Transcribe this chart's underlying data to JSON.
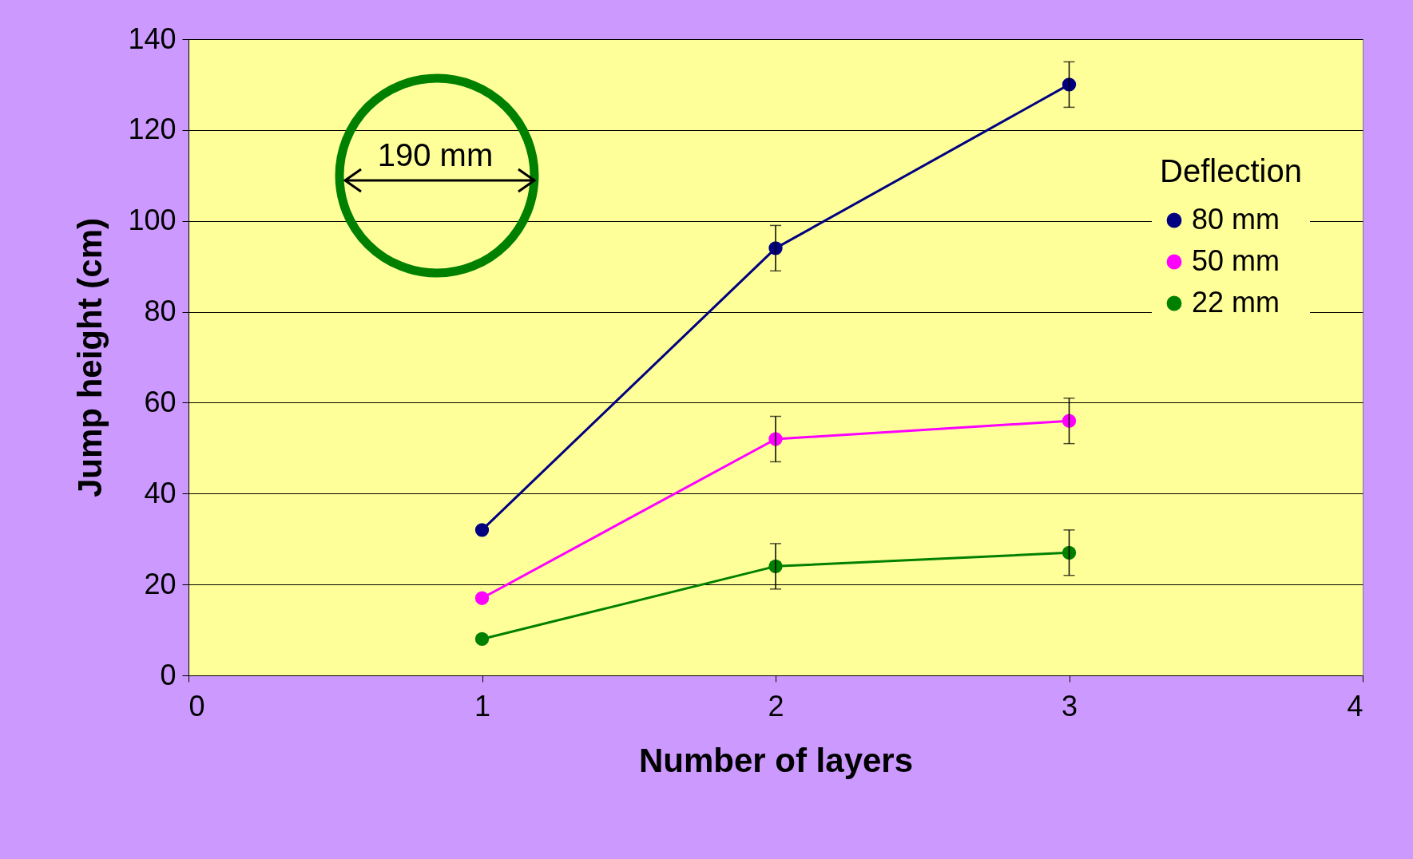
{
  "chart_data": {
    "type": "line",
    "xlabel": "Number of layers",
    "ylabel": "Jump height (cm)",
    "legend_title": "Deflection",
    "x": [
      1,
      2,
      3
    ],
    "series": [
      {
        "name": "80 mm",
        "color": "#000080",
        "values": [
          32,
          94,
          130
        ],
        "errors": [
          null,
          5,
          5
        ]
      },
      {
        "name": "50 mm",
        "color": "#ff00ff",
        "values": [
          17,
          52,
          56
        ],
        "errors": [
          null,
          5,
          5
        ]
      },
      {
        "name": "22 mm",
        "color": "#008000",
        "values": [
          8,
          24,
          27
        ],
        "errors": [
          null,
          5,
          5
        ]
      }
    ],
    "xlim": [
      0,
      4
    ],
    "xticks": [
      0,
      1,
      2,
      3,
      4
    ],
    "ylim": [
      0,
      140
    ],
    "yticks": [
      0,
      20,
      40,
      60,
      80,
      100,
      120,
      140
    ],
    "grid": "y",
    "legend": "top right",
    "marker": "circle",
    "line_style": "solid",
    "annotations": [
      "190 mm"
    ]
  }
}
